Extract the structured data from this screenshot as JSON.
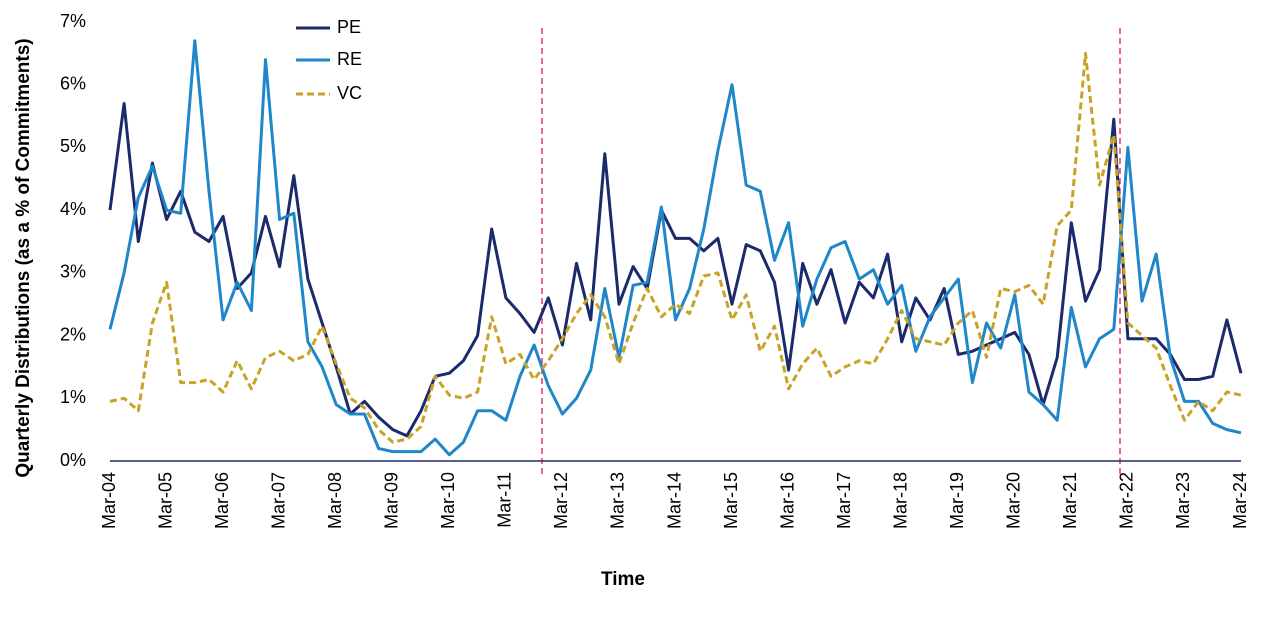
{
  "chart_data": {
    "type": "line",
    "x_label": "Time",
    "y_label": "Quarterly Distributions (as a % of Commitments)",
    "categories": [
      "Mar-04",
      null,
      null,
      null,
      "Mar-05",
      null,
      null,
      null,
      "Mar-06",
      null,
      null,
      null,
      "Mar-07",
      null,
      null,
      null,
      "Mar-08",
      null,
      null,
      null,
      "Mar-09",
      null,
      null,
      null,
      "Mar-10",
      null,
      null,
      null,
      "Mar-11",
      null,
      null,
      null,
      "Mar-12",
      null,
      null,
      null,
      "Mar-13",
      null,
      null,
      null,
      "Mar-14",
      null,
      null,
      null,
      "Mar-15",
      null,
      null,
      null,
      "Mar-16",
      null,
      null,
      null,
      "Mar-17",
      null,
      null,
      null,
      "Mar-18",
      null,
      null,
      null,
      "Mar-19",
      null,
      null,
      null,
      "Mar-20",
      null,
      null,
      null,
      "Mar-21",
      null,
      null,
      null,
      "Mar-22",
      null,
      null,
      null,
      "Mar-23",
      null,
      null,
      null,
      "Mar-24"
    ],
    "series": [
      {
        "name": "PE",
        "color": "#1b2a6b",
        "dash": false,
        "values": [
          4.0,
          5.7,
          3.5,
          4.75,
          3.85,
          4.3,
          3.65,
          3.5,
          3.9,
          2.75,
          3.0,
          3.9,
          3.1,
          4.55,
          2.9,
          2.2,
          1.5,
          0.75,
          0.95,
          0.7,
          0.5,
          0.4,
          0.8,
          1.35,
          1.4,
          1.6,
          2.0,
          3.7,
          2.6,
          2.35,
          2.05,
          2.6,
          1.85,
          3.15,
          2.25,
          4.9,
          2.5,
          3.1,
          2.75,
          4.0,
          3.55,
          3.55,
          3.35,
          3.55,
          2.5,
          3.45,
          3.35,
          2.85,
          1.45,
          3.15,
          2.5,
          3.05,
          2.2,
          2.85,
          2.6,
          3.3,
          1.9,
          2.6,
          2.25,
          2.75,
          1.7,
          1.75,
          1.85,
          1.95,
          2.05,
          1.7,
          0.9,
          1.65,
          3.8,
          2.55,
          3.05,
          5.45,
          1.95,
          1.95,
          1.95,
          1.7,
          1.3,
          1.3,
          1.35,
          2.25,
          1.4
        ]
      },
      {
        "name": "RE",
        "color": "#1f87c9",
        "dash": false,
        "values": [
          2.1,
          3.0,
          4.2,
          4.7,
          4.0,
          3.95,
          6.7,
          4.3,
          2.25,
          2.85,
          2.4,
          6.4,
          3.85,
          3.95,
          1.9,
          1.5,
          0.9,
          0.75,
          0.75,
          0.2,
          0.15,
          0.15,
          0.15,
          0.35,
          0.1,
          0.3,
          0.8,
          0.8,
          0.65,
          1.35,
          1.85,
          1.2,
          0.75,
          1.0,
          1.45,
          2.75,
          1.65,
          2.8,
          2.85,
          4.05,
          2.25,
          2.75,
          3.7,
          4.95,
          6.0,
          4.4,
          4.3,
          3.2,
          3.8,
          2.15,
          2.9,
          3.4,
          3.5,
          2.9,
          3.05,
          2.5,
          2.8,
          1.75,
          2.3,
          2.6,
          2.9,
          1.25,
          2.2,
          1.8,
          2.65,
          1.1,
          0.9,
          0.65,
          2.45,
          1.5,
          1.95,
          2.1,
          5.0,
          2.55,
          3.3,
          1.65,
          0.95,
          0.95,
          0.6,
          0.5,
          0.45
        ]
      },
      {
        "name": "VC",
        "color": "#c9a227",
        "dash": true,
        "values": [
          0.95,
          1.0,
          0.8,
          2.2,
          2.85,
          1.25,
          1.25,
          1.3,
          1.1,
          1.6,
          1.15,
          1.65,
          1.75,
          1.6,
          1.7,
          2.15,
          1.55,
          1.0,
          0.85,
          0.5,
          0.3,
          0.35,
          0.55,
          1.35,
          1.05,
          1.0,
          1.1,
          2.3,
          1.55,
          1.7,
          1.3,
          1.6,
          1.95,
          2.35,
          2.65,
          2.3,
          1.55,
          2.2,
          2.75,
          2.3,
          2.5,
          2.35,
          2.95,
          3.0,
          2.25,
          2.65,
          1.75,
          2.15,
          1.15,
          1.55,
          1.8,
          1.35,
          1.5,
          1.6,
          1.55,
          1.95,
          2.4,
          1.95,
          1.9,
          1.85,
          2.2,
          2.4,
          1.65,
          2.75,
          2.7,
          2.8,
          2.5,
          3.75,
          4.0,
          6.5,
          4.4,
          5.2,
          2.2,
          2.0,
          1.8,
          1.2,
          0.65,
          0.95,
          0.8,
          1.1,
          1.05
        ]
      }
    ],
    "ylim": [
      0,
      7
    ],
    "yticks": [
      {
        "value": 0,
        "label": "0%"
      },
      {
        "value": 1,
        "label": "1%"
      },
      {
        "value": 2,
        "label": "2%"
      },
      {
        "value": 3,
        "label": "3%"
      },
      {
        "value": 4,
        "label": "4%"
      },
      {
        "value": 5,
        "label": "5%"
      },
      {
        "value": 6,
        "label": "6%"
      },
      {
        "value": 7,
        "label": "7%"
      }
    ],
    "grid": false,
    "legend": "top"
  }
}
